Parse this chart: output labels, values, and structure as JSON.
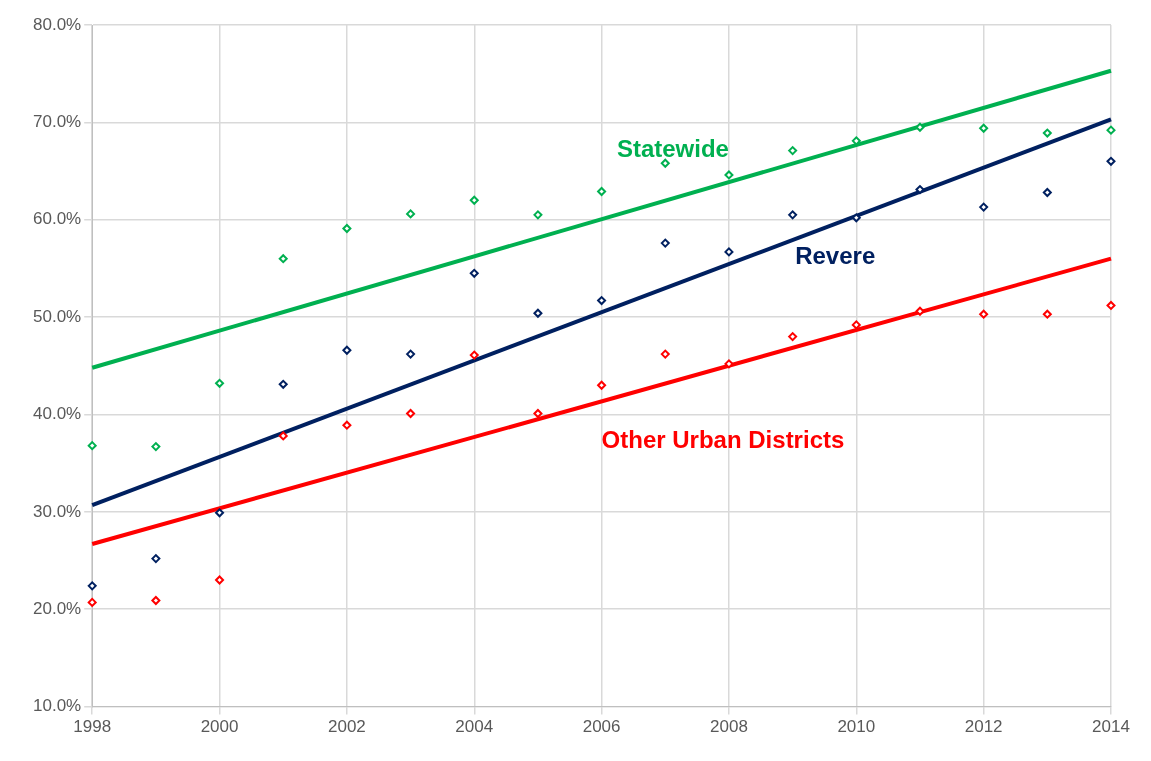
{
  "chart_data": {
    "type": "scatter",
    "marker": "diamond",
    "grid": true,
    "legend": false,
    "x": [
      1998,
      1999,
      2000,
      2001,
      2002,
      2003,
      2004,
      2005,
      2006,
      2007,
      2008,
      2009,
      2010,
      2011,
      2012,
      2013,
      2014
    ],
    "series": [
      {
        "color": "#00b050",
        "values": [
          36.8,
          36.7,
          43.2,
          56.0,
          59.1,
          60.6,
          62.0,
          60.5,
          62.9,
          65.8,
          64.6,
          67.1,
          68.1,
          69.5,
          69.4,
          68.9,
          69.2
        ]
      },
      {
        "color": "#002060",
        "values": [
          22.4,
          25.2,
          29.9,
          43.1,
          46.6,
          46.2,
          54.5,
          50.4,
          51.7,
          57.6,
          56.7,
          60.5,
          60.2,
          63.1,
          61.3,
          62.8,
          66.0
        ]
      },
      {
        "color": "#ff0000",
        "values": [
          20.7,
          20.9,
          23.0,
          37.8,
          38.9,
          40.1,
          46.1,
          40.1,
          43.0,
          46.2,
          45.2,
          48.0,
          49.2,
          50.6,
          50.3,
          50.3,
          51.2
        ]
      },
      {
        "type": "line",
        "marker": "none",
        "name": "Statewide",
        "color": "#00b050",
        "values": [
          44.8,
          null,
          null,
          null,
          null,
          null,
          null,
          null,
          null,
          null,
          null,
          null,
          null,
          null,
          null,
          null,
          75.3
        ]
      },
      {
        "type": "line",
        "marker": "none",
        "name": "Revere",
        "color": "#002060",
        "values": [
          30.7,
          null,
          null,
          null,
          null,
          null,
          null,
          null,
          null,
          null,
          null,
          null,
          null,
          null,
          null,
          null,
          70.3
        ]
      },
      {
        "type": "line",
        "marker": "none",
        "name": "Other Urban Districts",
        "color": "#ff0000",
        "values": [
          26.7,
          null,
          null,
          null,
          null,
          null,
          null,
          null,
          null,
          null,
          null,
          null,
          null,
          null,
          null,
          null,
          56.0
        ]
      }
    ],
    "xlim": [
      1998,
      2014
    ],
    "xticks": [
      1998,
      2000,
      2002,
      2004,
      2006,
      2008,
      2010,
      2012,
      2014
    ],
    "ylim": [
      10,
      80
    ],
    "yticks": [
      {
        "value": 10,
        "label": "10.0%"
      },
      {
        "value": 20,
        "label": "20.0%"
      },
      {
        "value": 30,
        "label": "30.0%"
      },
      {
        "value": 40,
        "label": "40.0%"
      },
      {
        "value": 50,
        "label": "50.0%"
      },
      {
        "value": 60,
        "label": "60.0%"
      },
      {
        "value": 70,
        "label": "70.0%"
      },
      {
        "value": 80,
        "label": "80.0%"
      }
    ]
  }
}
